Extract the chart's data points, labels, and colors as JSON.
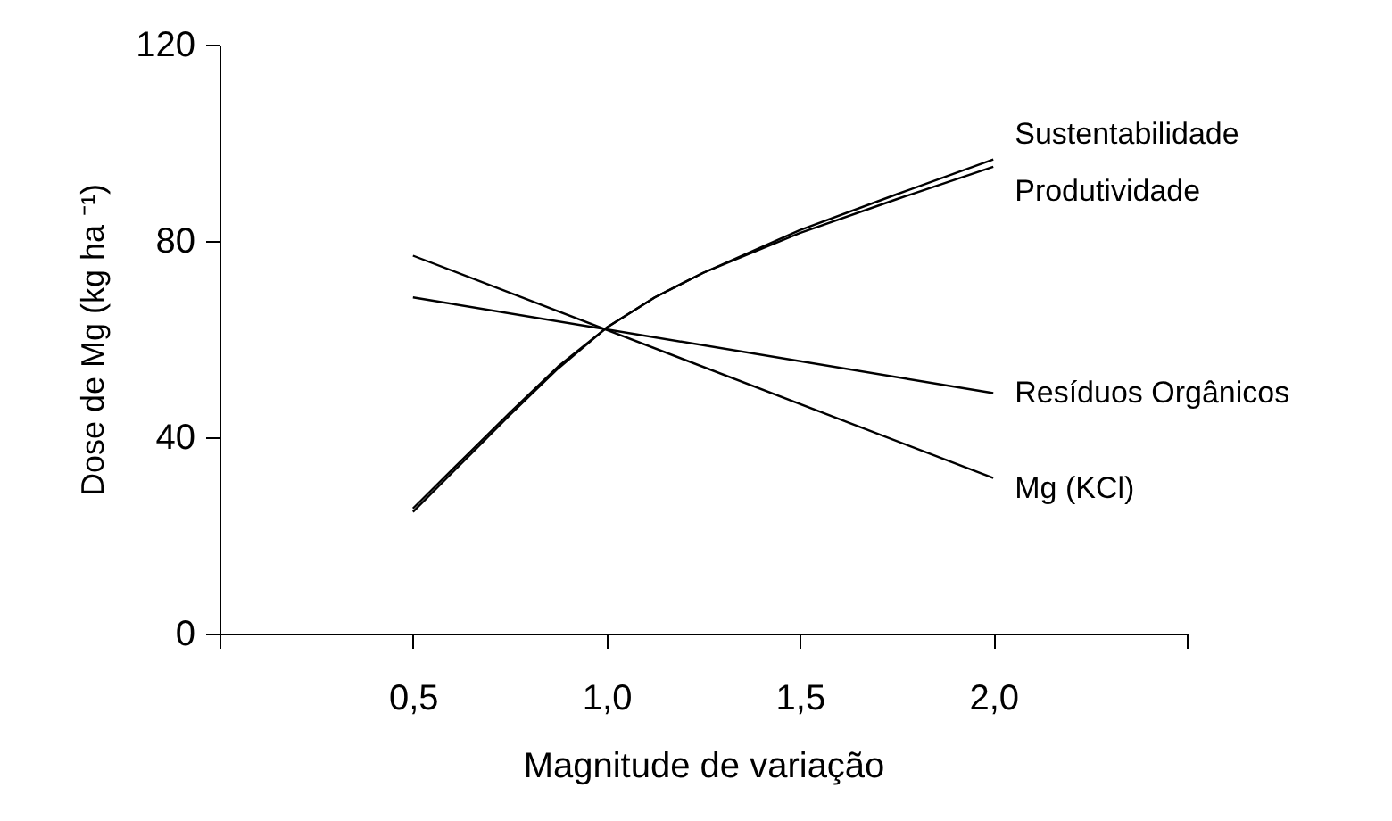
{
  "chart_data": {
    "type": "line",
    "xlabel": "Magnitude de variação",
    "ylabel": "Dose de Mg (kg ha ⁻¹)",
    "xlim": [
      0,
      2.5
    ],
    "ylim": [
      0,
      120
    ],
    "xticks": [
      {
        "value": 0,
        "label": null
      },
      {
        "value": 0.5,
        "label": "0,5"
      },
      {
        "value": 1.0,
        "label": "1,0"
      },
      {
        "value": 1.5,
        "label": "1,5"
      },
      {
        "value": 2.0,
        "label": "2,0"
      },
      {
        "value": 2.5,
        "label": null
      }
    ],
    "yticks": [
      0,
      40,
      80,
      120
    ],
    "grid": false,
    "legend": false,
    "marker": "none",
    "line_style": "solid",
    "series": [
      {
        "name": "Sustentabilidade",
        "color": "#000000",
        "x": [
          0.5,
          0.75,
          0.875,
          1.0,
          1.125,
          1.25,
          1.5,
          1.75,
          2.0
        ],
        "values": [
          25.5,
          45,
          54.4,
          62.3,
          68.5,
          73.5,
          82.2,
          89.5,
          96.6
        ]
      },
      {
        "name": "Produtividade",
        "color": "#000000",
        "x": [
          0.5,
          0.75,
          0.875,
          1.0,
          1.125,
          1.25,
          1.5,
          1.75,
          2.0
        ],
        "values": [
          24.8,
          44.5,
          54,
          62.3,
          68.5,
          73.5,
          81.6,
          88.5,
          95.1
        ]
      },
      {
        "name": "Resíduos Orgânicos",
        "color": "#000000",
        "x": [
          0.5,
          2.0
        ],
        "values": [
          68.5,
          49
        ]
      },
      {
        "name": "Mg (KCl)",
        "color": "#000000",
        "x": [
          0.5,
          2.0
        ],
        "values": [
          77,
          31.7
        ]
      }
    ]
  }
}
